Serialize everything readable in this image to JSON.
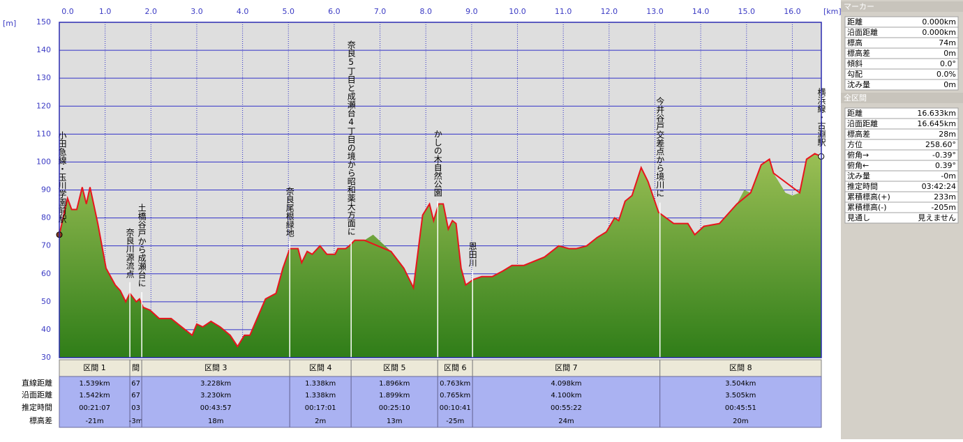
{
  "chart_data": {
    "type": "area",
    "x_unit": "[km]",
    "y_unit": "[m]",
    "xlim": [
      0,
      16.633
    ],
    "ylim": [
      30,
      150
    ],
    "xticks": [
      {
        "value": 0,
        "label": "0.0"
      },
      {
        "value": 1,
        "label": "1.0"
      },
      {
        "value": 2,
        "label": "2.0"
      },
      {
        "value": 3,
        "label": "3.0"
      },
      {
        "value": 4,
        "label": "4.0"
      },
      {
        "value": 5,
        "label": "5.0"
      },
      {
        "value": 6,
        "label": "6.0"
      },
      {
        "value": 7,
        "label": "7.0"
      },
      {
        "value": 8,
        "label": "8.0"
      },
      {
        "value": 9,
        "label": "9.0"
      },
      {
        "value": 10,
        "label": "10.0"
      },
      {
        "value": 11,
        "label": "11.0"
      },
      {
        "value": 12,
        "label": "12.0"
      },
      {
        "value": 13,
        "label": "13.0"
      },
      {
        "value": 14,
        "label": "14.0"
      },
      {
        "value": 15,
        "label": "15.0"
      },
      {
        "value": 16,
        "label": "16.0"
      }
    ],
    "yticks": [
      30,
      40,
      50,
      60,
      70,
      80,
      90,
      100,
      110,
      120,
      130,
      140,
      150
    ],
    "grid": true,
    "series": [
      {
        "style": "area",
        "color": "#5e9a2e",
        "x": [
          0,
          0.18,
          0.27,
          0.38,
          0.5,
          0.59,
          0.67,
          0.84,
          1.02,
          1.22,
          1.33,
          1.45,
          1.54,
          1.68,
          1.75,
          1.83,
          1.98,
          2.18,
          2.44,
          2.67,
          2.9,
          3.0,
          3.13,
          3.31,
          3.51,
          3.73,
          3.89,
          4.04,
          4.16,
          4.5,
          4.73,
          4.88,
          5.03,
          5.21,
          5.29,
          5.41,
          5.52,
          5.69,
          5.84,
          6.02,
          6.08,
          6.25,
          6.33,
          6.45,
          6.66,
          6.85,
          7.24,
          7.52,
          7.73,
          7.93,
          8.08,
          8.17,
          8.28,
          8.38,
          8.49,
          8.58,
          8.66,
          8.77,
          8.87,
          9.04,
          9.22,
          9.45,
          9.68,
          9.88,
          10.14,
          10.59,
          10.9,
          11.13,
          11.28,
          11.51,
          11.74,
          11.94,
          12.12,
          12.21,
          12.35,
          12.5,
          12.7,
          12.85,
          13.08,
          13.41,
          13.72,
          13.87,
          14.07,
          14.41,
          14.79,
          14.95,
          15.09,
          15.32,
          15.5,
          15.59,
          15.85,
          16.0,
          16.16,
          16.31,
          16.49,
          16.63
        ],
        "values": [
          74,
          87,
          83,
          83,
          91,
          85,
          91,
          78,
          62,
          56,
          54,
          50,
          53,
          50,
          51,
          48,
          47,
          44,
          44,
          41,
          38,
          42,
          41,
          43,
          41,
          38,
          34,
          38,
          38,
          51,
          53,
          62,
          69,
          69,
          64,
          68,
          67,
          70,
          67,
          67,
          69,
          69,
          70,
          72,
          72,
          74,
          68,
          62,
          55,
          81,
          85,
          79,
          85,
          85,
          76,
          79,
          78,
          62,
          56,
          58,
          59,
          59,
          61,
          63,
          63,
          66,
          70,
          69,
          69,
          70,
          73,
          75,
          80,
          79,
          86,
          88,
          98,
          93,
          82,
          78,
          78,
          74,
          77,
          78,
          85,
          90,
          89,
          99,
          101,
          96,
          89,
          88,
          89,
          101,
          103,
          102
        ]
      },
      {
        "style": "line",
        "color": "#e8141c",
        "x": [
          0,
          0.18,
          0.27,
          0.38,
          0.5,
          0.59,
          0.67,
          0.84,
          1.02,
          1.22,
          1.33,
          1.45,
          1.54,
          1.68,
          1.75,
          1.83,
          1.98,
          2.18,
          2.44,
          2.67,
          2.9,
          3.0,
          3.13,
          3.31,
          3.51,
          3.73,
          3.89,
          4.04,
          4.16,
          4.5,
          4.73,
          4.88,
          5.03,
          5.21,
          5.29,
          5.41,
          5.52,
          5.69,
          5.84,
          6.02,
          6.08,
          6.25,
          6.33,
          6.45,
          6.66,
          7.24,
          7.52,
          7.73,
          7.93,
          8.08,
          8.17,
          8.28,
          8.38,
          8.49,
          8.58,
          8.66,
          8.77,
          8.87,
          9.04,
          9.22,
          9.45,
          9.68,
          9.88,
          10.14,
          10.59,
          10.9,
          11.13,
          11.28,
          11.51,
          11.74,
          11.94,
          12.12,
          12.21,
          12.35,
          12.5,
          12.7,
          12.85,
          13.08,
          13.41,
          13.72,
          13.87,
          14.07,
          14.41,
          14.79,
          15.09,
          15.32,
          15.5,
          15.59,
          16.16,
          16.31,
          16.49,
          16.63
        ],
        "values": [
          74,
          87,
          83,
          83,
          91,
          85,
          91,
          78,
          62,
          56,
          54,
          50,
          53,
          50,
          51,
          48,
          47,
          44,
          44,
          41,
          38,
          42,
          41,
          43,
          41,
          38,
          34,
          38,
          38,
          51,
          53,
          62,
          69,
          69,
          64,
          68,
          67,
          70,
          67,
          67,
          69,
          69,
          70,
          72,
          72,
          68,
          62,
          55,
          81,
          85,
          79,
          85,
          85,
          76,
          79,
          78,
          62,
          56,
          58,
          59,
          59,
          61,
          63,
          63,
          66,
          70,
          69,
          69,
          70,
          73,
          75,
          80,
          79,
          86,
          88,
          98,
          93,
          82,
          78,
          78,
          74,
          77,
          78,
          85,
          89,
          99,
          101,
          96,
          89,
          101,
          103,
          102
        ]
      }
    ],
    "waypoints": [
      {
        "name": "小田急線・玉川学園前駅",
        "km": 0
      },
      {
        "name": "奈良川源流点",
        "km": 1.54
      },
      {
        "name": "土橋谷戸から成瀬台に",
        "km": 1.8
      },
      {
        "name": "奈良尾根緑地",
        "km": 5.03
      },
      {
        "name": "奈良5丁目と成瀬台4丁目の境から昭和薬大方面に",
        "km": 6.37
      },
      {
        "name": "かしの木自然公園",
        "km": 8.26
      },
      {
        "name": "恩田川",
        "km": 9.02
      },
      {
        "name": "今井谷戸交差点から境川に",
        "km": 13.11
      },
      {
        "name": "横浜線・古淵駅",
        "km": 16.633
      }
    ]
  },
  "segment_table": {
    "row_labels": [
      "直線距離",
      "沿面距離",
      "推定時間",
      "標高差"
    ],
    "segments": [
      {
        "name": "区間 1",
        "cells": [
          "1.539km",
          "1.542km",
          "00:21:07",
          "-21m"
        ]
      },
      {
        "name": "間",
        "cells": [
          "67",
          "67",
          "03",
          "-3m"
        ]
      },
      {
        "name": "区間 3",
        "cells": [
          "3.228km",
          "3.230km",
          "00:43:57",
          "18m"
        ]
      },
      {
        "name": "区間 4",
        "cells": [
          "1.338km",
          "1.338km",
          "00:17:01",
          "2m"
        ]
      },
      {
        "name": "区間 5",
        "cells": [
          "1.896km",
          "1.899km",
          "00:25:10",
          "13m"
        ]
      },
      {
        "name": "区間 6",
        "cells": [
          "0.763km",
          "0.765km",
          "00:10:41",
          "-25m"
        ]
      },
      {
        "name": "区間 7",
        "cells": [
          "4.098km",
          "4.100km",
          "00:55:22",
          "24m"
        ]
      },
      {
        "name": "区間 8",
        "cells": [
          "3.504km",
          "3.505km",
          "00:45:51",
          "20m"
        ]
      }
    ]
  },
  "marker_panel": {
    "title": "マーカー",
    "rows": [
      [
        "距離",
        "0.000km"
      ],
      [
        "沿面距離",
        "0.000km"
      ],
      [
        "標高",
        "74m"
      ],
      [
        "標高差",
        "0m"
      ],
      [
        "傾斜",
        "0.0°"
      ],
      [
        "勾配",
        "0.0%"
      ],
      [
        "沈み量",
        "0m"
      ]
    ]
  },
  "total_panel": {
    "title": "全区間",
    "rows": [
      [
        "距離",
        "16.633km"
      ],
      [
        "沿面距離",
        "16.645km"
      ],
      [
        "標高差",
        "28m"
      ],
      [
        "方位",
        "258.60°"
      ],
      [
        "俯角→",
        "-0.39°"
      ],
      [
        "俯角←",
        "0.39°"
      ],
      [
        "沈み量",
        "-0m"
      ],
      [
        "推定時間",
        "03:42:24"
      ],
      [
        "累積標高(+)",
        "233m"
      ],
      [
        "累積標高(-)",
        "-205m"
      ],
      [
        "見通し",
        "見えません"
      ]
    ]
  }
}
